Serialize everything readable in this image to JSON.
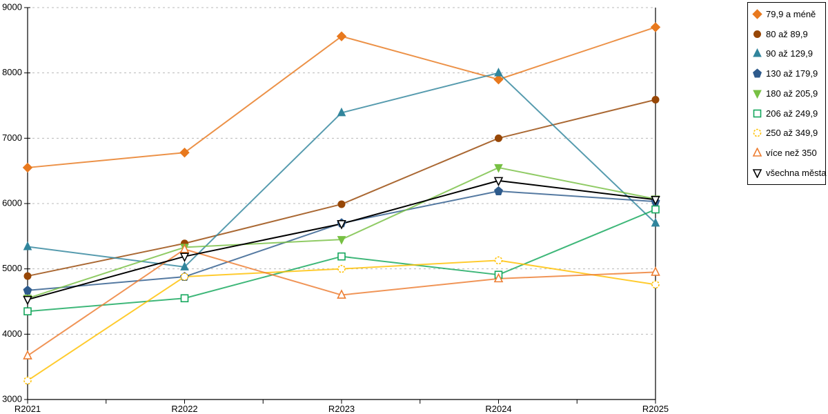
{
  "chart_data": {
    "type": "line",
    "title": "",
    "xlabel": "",
    "ylabel": "",
    "categories": [
      "R2021",
      "R2022",
      "R2023",
      "R2024",
      "R2025"
    ],
    "ylim": [
      3000,
      9000
    ],
    "y_tick_step": 1000,
    "y_tick_labels": [
      "3000",
      "4000",
      "5000",
      "6000",
      "7000",
      "8000",
      "9000"
    ],
    "grid": "horizontal-dashed",
    "legend_position": "right",
    "series": [
      {
        "name": "79,9 a méně",
        "color": "#E8791E",
        "marker": "diamond",
        "filled": true,
        "values": [
          6550,
          6780,
          8560,
          7900,
          8700
        ]
      },
      {
        "name": "80 až 89,9",
        "color": "#974706",
        "marker": "circle",
        "filled": true,
        "values": [
          4890,
          5390,
          5990,
          7000,
          7590
        ]
      },
      {
        "name": "90 až 129,9",
        "color": "#31859C",
        "marker": "triangle-up",
        "filled": true,
        "values": [
          5340,
          5030,
          7390,
          8000,
          5700
        ]
      },
      {
        "name": "130 až 179,9",
        "color": "#2E5B8C",
        "marker": "pentagon",
        "filled": true,
        "values": [
          4670,
          4880,
          5700,
          6190,
          6030
        ]
      },
      {
        "name": "180 až 205,9",
        "color": "#77C043",
        "marker": "triangle-down",
        "filled": true,
        "values": [
          4550,
          5330,
          5450,
          6550,
          6070
        ]
      },
      {
        "name": "206 až 249,9",
        "color": "#13A75C",
        "marker": "square",
        "filled": false,
        "values": [
          4350,
          4550,
          5190,
          4910,
          5910
        ]
      },
      {
        "name": "250 až 349,9",
        "color": "#FFC000",
        "marker": "circle",
        "filled": false,
        "dashed_marker": true,
        "values": [
          3290,
          4880,
          5000,
          5130,
          4760
        ]
      },
      {
        "name": "více než 350",
        "color": "#ED7D31",
        "marker": "triangle-up",
        "filled": false,
        "values": [
          3670,
          5300,
          4600,
          4850,
          4950
        ]
      },
      {
        "name": "všechna města",
        "color": "#000000",
        "marker": "triangle-down",
        "filled": false,
        "values": [
          4530,
          5190,
          5690,
          6350,
          6060
        ]
      }
    ]
  },
  "colors": {
    "gridline": "#b8b8b8",
    "axis": "#000000",
    "background": "#ffffff"
  }
}
